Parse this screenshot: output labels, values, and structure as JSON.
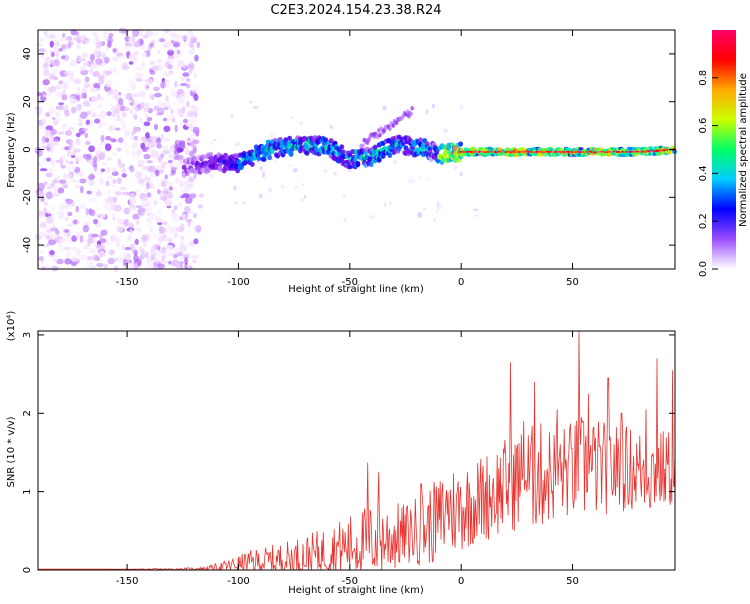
{
  "title": "C2E3.2024.154.23.38.R24",
  "colors": {
    "snr_line": "#e8332e",
    "axis": "#000000",
    "cmap": [
      "#ffffff",
      "#e8c4ff",
      "#b36bff",
      "#6b00e0",
      "#0000ff",
      "#00b4ff",
      "#00ff7f",
      "#c8ff00",
      "#ff9900",
      "#ff0000",
      "#ff0066"
    ]
  },
  "chart_data": [
    {
      "type": "heatmap",
      "title": "C2E3.2024.154.23.38.R24",
      "xlabel": "Height of straight line (km)",
      "ylabel": "Frequency (Hz)",
      "xlim": [
        -190,
        96
      ],
      "ylim": [
        -50,
        50
      ],
      "x_ticks": [
        -150,
        -100,
        -50,
        0,
        50
      ],
      "y_ticks": [
        -40,
        -20,
        0,
        20,
        40
      ],
      "colorbar": {
        "label": "Normalized spectral amplitude",
        "range": [
          0,
          1
        ],
        "ticks": [
          0.0,
          0.2,
          0.4,
          0.6,
          0.8
        ],
        "tick_labels": [
          "0.0",
          "0.2",
          "0.4",
          "0.6",
          "0.8"
        ],
        "palette": "rainbow"
      },
      "ridge": {
        "description_points": [
          [
            -125,
            -8
          ],
          [
            -110,
            -5
          ],
          [
            -100,
            -6
          ],
          [
            -90,
            -1
          ],
          [
            -80,
            1
          ],
          [
            -70,
            2
          ],
          [
            -60,
            1
          ],
          [
            -50,
            -4
          ],
          [
            -40,
            -3
          ],
          [
            -30,
            2
          ],
          [
            -20,
            1
          ],
          [
            -15,
            0
          ],
          [
            -10,
            -2
          ],
          [
            0,
            -1
          ],
          [
            10,
            -1
          ],
          [
            20,
            -1
          ],
          [
            30,
            -1
          ],
          [
            40,
            -1
          ],
          [
            50,
            -1
          ],
          [
            60,
            -1
          ],
          [
            70,
            -1
          ],
          [
            80,
            -1
          ],
          [
            96,
            0
          ]
        ]
      }
    },
    {
      "type": "line",
      "xlabel": "Height of straight line (km)",
      "ylabel": "SNR (10 * v/v)",
      "y_multiplier": "(x10⁴)",
      "xlim": [
        -190,
        96
      ],
      "ylim": [
        0,
        3.05
      ],
      "x_ticks": [
        -150,
        -100,
        -50,
        0,
        50
      ],
      "y_ticks": [
        0,
        1,
        2,
        3
      ],
      "series": [
        {
          "envelope": {
            "x": [
              -190,
              -160,
              -130,
              -115,
              -105,
              -95,
              -85,
              -75,
              -65,
              -55,
              -45,
              -35,
              -25,
              -15,
              -5,
              5,
              15,
              25,
              35,
              45,
              55,
              65,
              75,
              85,
              96
            ],
            "base": [
              0.01,
              0.01,
              0.01,
              0.02,
              0.05,
              0.1,
              0.12,
              0.15,
              0.2,
              0.28,
              0.35,
              0.4,
              0.45,
              0.55,
              0.75,
              0.85,
              1.0,
              1.15,
              1.2,
              1.25,
              1.3,
              1.3,
              1.3,
              1.25,
              1.3
            ],
            "amp": [
              0.0,
              0.0,
              0.01,
              0.02,
              0.08,
              0.15,
              0.2,
              0.25,
              0.3,
              0.35,
              0.45,
              0.5,
              0.4,
              0.5,
              0.6,
              0.55,
              0.6,
              0.65,
              0.7,
              0.6,
              0.7,
              0.6,
              0.55,
              0.55,
              0.5
            ]
          },
          "peaks": [
            [
              -42,
              1.37
            ],
            [
              -37,
              1.25
            ],
            [
              -18,
              1.1
            ],
            [
              -10,
              1.05
            ],
            [
              -6,
              1.0
            ],
            [
              -2,
              0.95
            ],
            [
              22,
              2.65
            ],
            [
              28,
              1.9
            ],
            [
              33,
              2.4
            ],
            [
              43,
              2.05
            ],
            [
              53,
              3.05
            ],
            [
              57,
              2.25
            ],
            [
              66,
              2.45
            ],
            [
              72,
              2.0
            ],
            [
              83,
              2.05
            ],
            [
              88,
              2.7
            ],
            [
              95,
              2.55
            ]
          ]
        }
      ]
    }
  ]
}
